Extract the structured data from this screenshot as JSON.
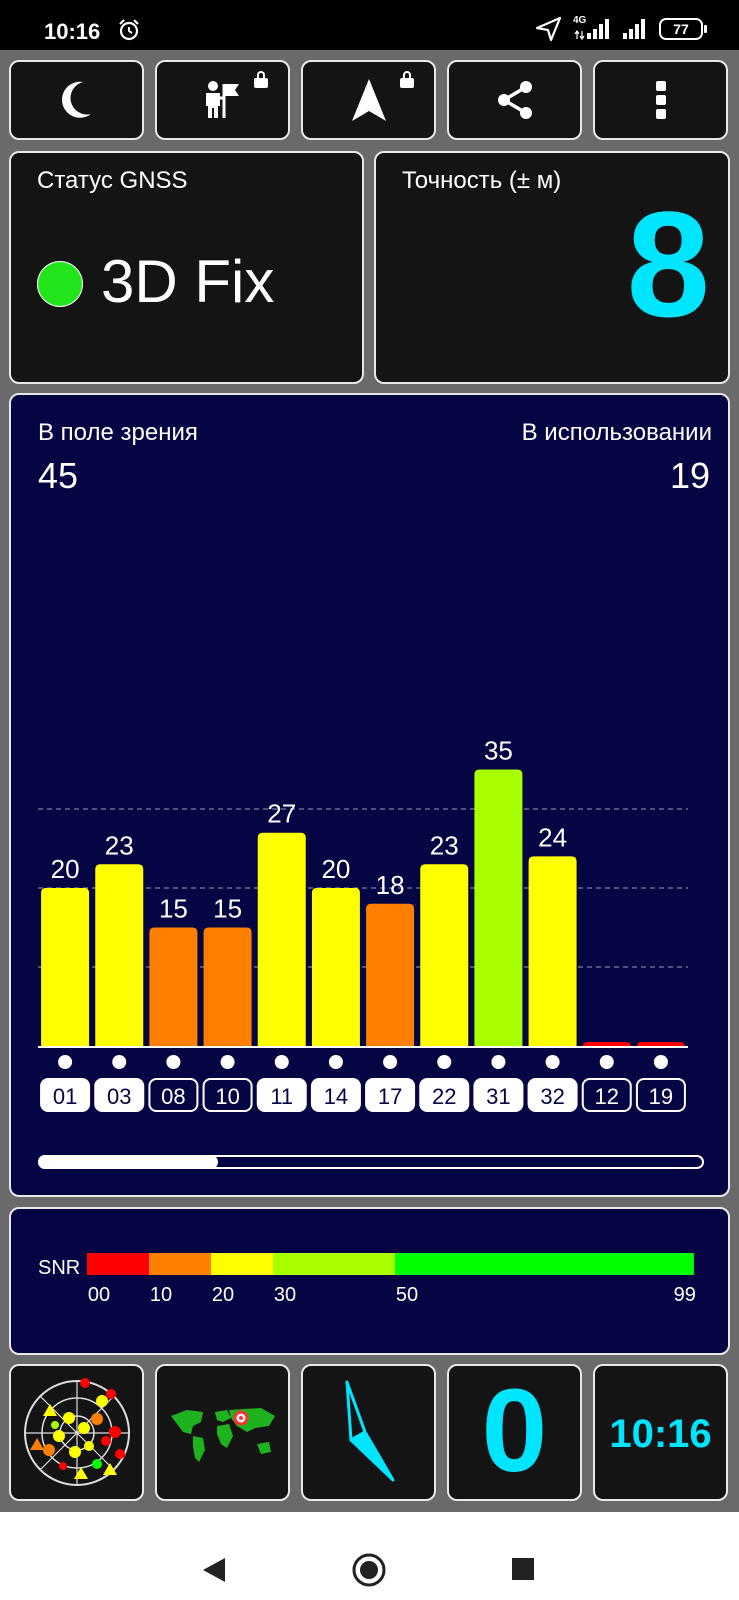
{
  "status_bar": {
    "time": "10:16",
    "network": "4G",
    "battery": "77"
  },
  "toolbar": {
    "buttons": [
      {
        "icon": "moon-icon",
        "locked": false
      },
      {
        "icon": "person-flag-icon",
        "locked": true
      },
      {
        "icon": "navigation-arrow-icon",
        "locked": true
      },
      {
        "icon": "share-icon",
        "locked": false
      },
      {
        "icon": "more-vert-icon",
        "locked": false
      }
    ]
  },
  "gnss_status": {
    "title": "Статус GNSS",
    "value": "3D Fix",
    "indicator_color": "#22e51b"
  },
  "accuracy": {
    "title": "Точность (± м)",
    "value": "8",
    "color": "#00e5ff"
  },
  "satellites": {
    "in_view_label": "В поле зрения",
    "in_view": "45",
    "in_use_label": "В использовании",
    "in_use": "19",
    "scroll_position": 0.27
  },
  "chart_data": {
    "type": "bar",
    "categories": [
      "01",
      "03",
      "08",
      "10",
      "11",
      "14",
      "17",
      "22",
      "31",
      "32",
      "12",
      "19"
    ],
    "values": [
      20,
      23,
      15,
      15,
      27,
      20,
      18,
      23,
      35,
      24,
      0,
      0
    ],
    "value_labels": [
      "20",
      "23",
      "15",
      "15",
      "27",
      "20",
      "18",
      "23",
      "35",
      "24",
      "",
      ""
    ],
    "in_use": [
      true,
      true,
      false,
      false,
      true,
      true,
      true,
      true,
      true,
      true,
      false,
      false
    ],
    "ylim": [
      0,
      40
    ],
    "grid": true
  },
  "snr_legend": {
    "label": "SNR",
    "ticks": [
      "00",
      "10",
      "20",
      "30",
      "50",
      "99"
    ],
    "segments": [
      {
        "from": 0,
        "to": 10,
        "color": "#ff0000"
      },
      {
        "from": 10,
        "to": 20,
        "color": "#ff8000"
      },
      {
        "from": 20,
        "to": 30,
        "color": "#ffff00"
      },
      {
        "from": 30,
        "to": 50,
        "color": "#a8ff00"
      },
      {
        "from": 50,
        "to": 99,
        "color": "#00ff00"
      }
    ]
  },
  "bottom_tiles": {
    "speed": "0",
    "clock": "10:16",
    "accent_color": "#00e5ff"
  }
}
